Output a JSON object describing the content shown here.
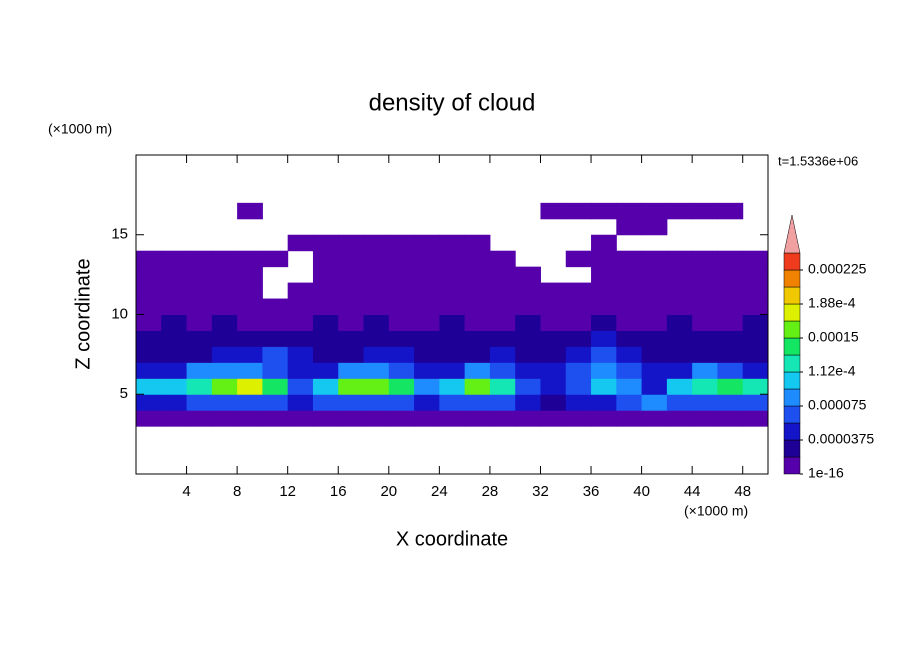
{
  "chart_data": {
    "type": "contour",
    "title": "density of cloud",
    "x_label": "X coordinate",
    "y_label": "Z coordinate",
    "x_unit": "(×1000 m)",
    "y_unit": "(×1000 m)",
    "time_label": "t=1.5336e+06",
    "xlim": [
      0,
      50
    ],
    "ylim": [
      0,
      20
    ],
    "xticks": [
      4,
      8,
      12,
      16,
      20,
      24,
      28,
      32,
      36,
      40,
      44,
      48
    ],
    "yticks": [
      5,
      10,
      15
    ],
    "x": [
      1,
      3,
      5,
      7,
      9,
      11,
      13,
      15,
      17,
      19,
      21,
      23,
      25,
      27,
      29,
      31,
      33,
      35,
      37,
      39,
      41,
      43,
      45,
      47,
      49
    ],
    "y": [
      3.5,
      4.5,
      5.5,
      6.5,
      7.5,
      8.5,
      9.5,
      10.5,
      11.5,
      12.5,
      13.5,
      14.5,
      15.5,
      16.5
    ],
    "z": [
      [
        1e-06,
        1e-06,
        1e-06,
        1e-06,
        1e-06,
        1e-06,
        1e-06,
        1e-06,
        1e-06,
        1e-06,
        1e-06,
        1e-06,
        1e-06,
        1e-06,
        1e-06,
        1e-06,
        1e-06,
        1e-06,
        1e-06,
        1e-06,
        1e-06,
        1e-06,
        1e-06,
        1e-06,
        1e-06
      ],
      [
        5e-05,
        5e-05,
        6e-05,
        6e-05,
        6e-05,
        6e-05,
        4e-05,
        6e-05,
        6e-05,
        6e-05,
        6e-05,
        5e-05,
        6e-05,
        6e-05,
        6e-05,
        4e-05,
        3e-05,
        4e-05,
        5e-05,
        6e-05,
        9e-05,
        6e-05,
        6e-05,
        6e-05,
        6e-05
      ],
      [
        0.00011,
        0.0001,
        0.00013,
        0.00016,
        0.00017,
        0.00014,
        6e-05,
        0.0001,
        0.00015,
        0.00016,
        0.00014,
        8e-05,
        0.00011,
        0.00015,
        0.00013,
        6e-05,
        4e-05,
        6e-05,
        0.0001,
        9e-05,
        4e-05,
        0.00011,
        0.00013,
        0.00014,
        0.00012
      ],
      [
        5e-05,
        5e-05,
        8e-05,
        8e-05,
        8e-05,
        6e-05,
        4e-05,
        5e-05,
        8e-05,
        8e-05,
        6e-05,
        5e-05,
        5e-05,
        8e-05,
        6e-05,
        4e-05,
        5e-05,
        6e-05,
        8e-05,
        6e-05,
        4e-05,
        5e-05,
        8e-05,
        6e-05,
        5e-05
      ],
      [
        3e-05,
        3e-05,
        3e-05,
        4e-05,
        5e-05,
        6e-05,
        4e-05,
        3e-05,
        3e-05,
        4e-05,
        4e-05,
        3e-05,
        3e-05,
        3e-05,
        4e-05,
        3e-05,
        3e-05,
        4e-05,
        6e-05,
        4e-05,
        3e-05,
        3e-05,
        3e-05,
        3e-05,
        3e-05
      ],
      [
        2.5e-05,
        2.5e-05,
        2.5e-05,
        3e-05,
        3e-05,
        3e-05,
        2.5e-05,
        2.5e-05,
        2.5e-05,
        2.5e-05,
        3e-05,
        2.5e-05,
        2.5e-05,
        2.5e-05,
        2.5e-05,
        2.5e-05,
        2.5e-05,
        3e-05,
        4e-05,
        3e-05,
        2.5e-05,
        2.5e-05,
        2.5e-05,
        2.5e-05,
        2.5e-05
      ],
      [
        1e-05,
        2e-05,
        1e-05,
        2e-05,
        1e-05,
        1e-05,
        1e-05,
        2e-05,
        1e-05,
        2e-05,
        1e-05,
        1e-05,
        2e-05,
        1e-05,
        1e-05,
        2e-05,
        1e-05,
        1e-05,
        2e-05,
        1e-05,
        1e-05,
        2e-05,
        1e-05,
        1e-05,
        2e-05
      ],
      [
        1e-06,
        1e-06,
        1e-06,
        1e-06,
        1e-06,
        1e-06,
        1e-06,
        1e-06,
        1e-06,
        1e-06,
        1e-06,
        1e-06,
        1e-06,
        1e-06,
        1e-06,
        1e-06,
        1e-06,
        1e-06,
        1e-06,
        1e-06,
        1e-06,
        1e-06,
        1e-06,
        1e-06,
        1e-06
      ],
      [
        1e-06,
        1e-06,
        1e-06,
        1e-06,
        1e-06,
        null,
        1e-06,
        1e-06,
        1e-06,
        1e-06,
        1e-06,
        1e-06,
        1e-06,
        1e-06,
        1e-06,
        1e-06,
        1e-06,
        1e-06,
        1e-06,
        1e-06,
        1e-06,
        1e-06,
        1e-06,
        1e-06,
        1e-06
      ],
      [
        1e-06,
        1e-06,
        1e-06,
        1e-06,
        1e-06,
        null,
        null,
        1e-06,
        1e-06,
        1e-06,
        1e-06,
        1e-06,
        1e-06,
        1e-06,
        1e-06,
        1e-06,
        null,
        null,
        1e-06,
        1e-06,
        1e-06,
        1e-06,
        1e-06,
        1e-06,
        1e-06
      ],
      [
        1e-06,
        1e-06,
        1e-06,
        1e-06,
        1e-06,
        1e-06,
        null,
        1e-06,
        1e-06,
        1e-06,
        1e-06,
        1e-06,
        1e-06,
        1e-06,
        1e-06,
        null,
        null,
        1e-06,
        1e-06,
        1e-06,
        1e-06,
        1e-06,
        1e-06,
        1e-06,
        1e-06
      ],
      [
        null,
        null,
        null,
        null,
        null,
        null,
        1e-06,
        1e-06,
        1e-06,
        1e-06,
        1e-06,
        1e-06,
        1e-06,
        1e-06,
        null,
        null,
        null,
        null,
        1e-06,
        null,
        null,
        null,
        null,
        null,
        null
      ],
      [
        null,
        null,
        null,
        null,
        null,
        null,
        null,
        null,
        null,
        null,
        null,
        null,
        null,
        null,
        null,
        null,
        null,
        null,
        null,
        1e-06,
        1e-06,
        null,
        null,
        null,
        null
      ],
      [
        null,
        null,
        null,
        null,
        1e-06,
        null,
        null,
        null,
        null,
        null,
        null,
        null,
        null,
        null,
        null,
        null,
        1e-06,
        1e-06,
        1e-06,
        1e-06,
        1e-06,
        1e-06,
        1e-06,
        1e-06,
        null
      ]
    ],
    "levels": [
      1e-16,
      1.875e-05,
      3.75e-05,
      5.625e-05,
      7.5e-05,
      9.375e-05,
      0.0001125,
      0.00013125,
      0.00015,
      0.00016875,
      0.0001875,
      0.00020625,
      0.000225,
      0.00024375
    ],
    "colors": [
      "#5500aa",
      "#1e0096",
      "#1414c8",
      "#1e50f0",
      "#1e8cff",
      "#14c8f0",
      "#14e6b4",
      "#14e664",
      "#64f014",
      "#dcf000",
      "#f0c800",
      "#f08200",
      "#f03c1e"
    ],
    "overflow_color": "#f0a0a0",
    "colorbar_ticks": [
      1e-16,
      3.75e-05,
      7.5e-05,
      {
        "value": 0.0001125,
        "label": "1.12e-4"
      },
      0.00015,
      {
        "value": 0.0001875,
        "label": "1.88e-4"
      },
      0.000225
    ]
  }
}
